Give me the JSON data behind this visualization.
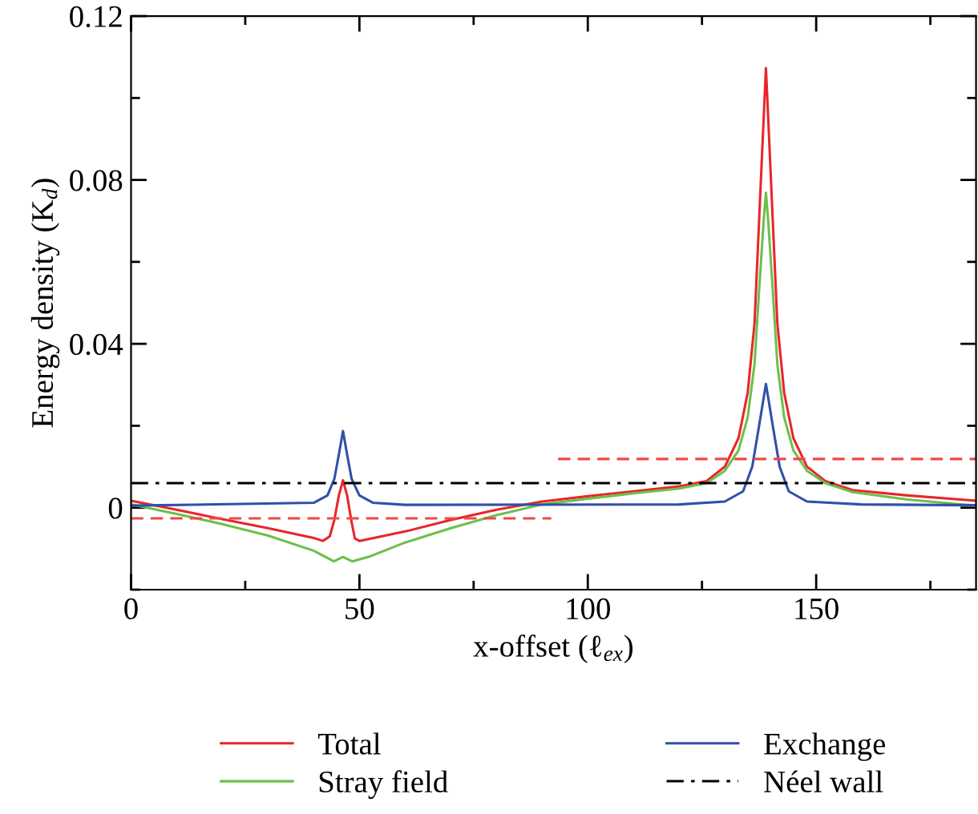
{
  "chart_data": {
    "type": "line",
    "xlabel": "x-offset (ℓ$_{ex}$)",
    "ylabel": "Energy density (K$_{d}$)",
    "xlim": [
      0,
      185
    ],
    "ylim": [
      -0.02,
      0.12
    ],
    "xticks": [
      0,
      {
        "value": 25,
        "label": null
      },
      50,
      {
        "value": 75,
        "label": null
      },
      100,
      {
        "value": 125,
        "label": null
      },
      150,
      {
        "value": 175,
        "label": null
      }
    ],
    "yticks": [
      {
        "value": -0.02,
        "label": null
      },
      0,
      {
        "value": 0.02,
        "label": null
      },
      0.04,
      {
        "value": 0.06,
        "label": null
      },
      0.08,
      {
        "value": 0.1,
        "label": null
      },
      0.12
    ],
    "grid": false,
    "legend": "bottom",
    "marker": "none",
    "series": [
      {
        "name": "Total",
        "color": "#e8262b",
        "line_style": "solid",
        "x": [
          0,
          10,
          20,
          30,
          40,
          42,
          43.5,
          44.5,
          45.5,
          46.4,
          47.3,
          48.2,
          49,
          50,
          60,
          70,
          80,
          90,
          100,
          110,
          120,
          126,
          130,
          133,
          135,
          136.5,
          137.5,
          138.5,
          139,
          139.5,
          140.5,
          141.5,
          143,
          145,
          148,
          152,
          158,
          170,
          185
        ],
        "values": [
          0.0017,
          -0.0005,
          -0.0028,
          -0.005,
          -0.0074,
          -0.0081,
          -0.007,
          -0.003,
          0.003,
          0.0067,
          0.003,
          -0.003,
          -0.0075,
          -0.0081,
          -0.0058,
          -0.003,
          -0.0005,
          0.0015,
          0.0028,
          0.004,
          0.0052,
          0.0065,
          0.01,
          0.017,
          0.028,
          0.045,
          0.07,
          0.095,
          0.1073,
          0.095,
          0.07,
          0.045,
          0.028,
          0.017,
          0.01,
          0.0065,
          0.0043,
          0.003,
          0.0017
        ]
      },
      {
        "name": "Stray field",
        "color": "#6cc04a",
        "line_style": "solid",
        "x": [
          0,
          10,
          20,
          30,
          40,
          44.4,
          46.4,
          48.4,
          52,
          60,
          70,
          80,
          90,
          100,
          110,
          120,
          126,
          130,
          133,
          135,
          136.5,
          137.5,
          138.5,
          139,
          139.5,
          140.5,
          141.5,
          143,
          145,
          148,
          152,
          158,
          170,
          185
        ],
        "values": [
          0.0008,
          -0.0015,
          -0.004,
          -0.0068,
          -0.0105,
          -0.0131,
          -0.012,
          -0.0131,
          -0.012,
          -0.0085,
          -0.005,
          -0.0018,
          0.0008,
          0.0022,
          0.0035,
          0.0047,
          0.006,
          0.009,
          0.014,
          0.022,
          0.035,
          0.053,
          0.07,
          0.0769,
          0.07,
          0.053,
          0.035,
          0.022,
          0.014,
          0.009,
          0.006,
          0.0038,
          0.002,
          0.0005
        ]
      },
      {
        "name": "Exchange",
        "color": "#3050a8",
        "line_style": "solid",
        "x": [
          0,
          40,
          43,
          44.5,
          45.5,
          46.4,
          47.3,
          48.3,
          50,
          53,
          60,
          120,
          130,
          134,
          136,
          137.5,
          139,
          140.5,
          142,
          144,
          148,
          160,
          185
        ],
        "values": [
          0.0005,
          0.0012,
          0.003,
          0.007,
          0.013,
          0.0187,
          0.013,
          0.007,
          0.003,
          0.0012,
          0.0007,
          0.0008,
          0.0015,
          0.004,
          0.01,
          0.02,
          0.0302,
          0.02,
          0.01,
          0.004,
          0.0015,
          0.0008,
          0.0006
        ]
      },
      {
        "name": "Néel wall",
        "color": "#000000",
        "line_style": "dashdot",
        "x": [
          0,
          185
        ],
        "values": [
          0.006,
          0.006
        ]
      },
      {
        "color": "#f04848",
        "line_style": "dashed",
        "x": [
          0,
          92
        ],
        "values": [
          -0.0026,
          -0.0026
        ]
      },
      {
        "color": "#f04848",
        "line_style": "dashed",
        "x": [
          93.5,
          185
        ],
        "values": [
          0.0119,
          0.0119
        ]
      }
    ]
  }
}
